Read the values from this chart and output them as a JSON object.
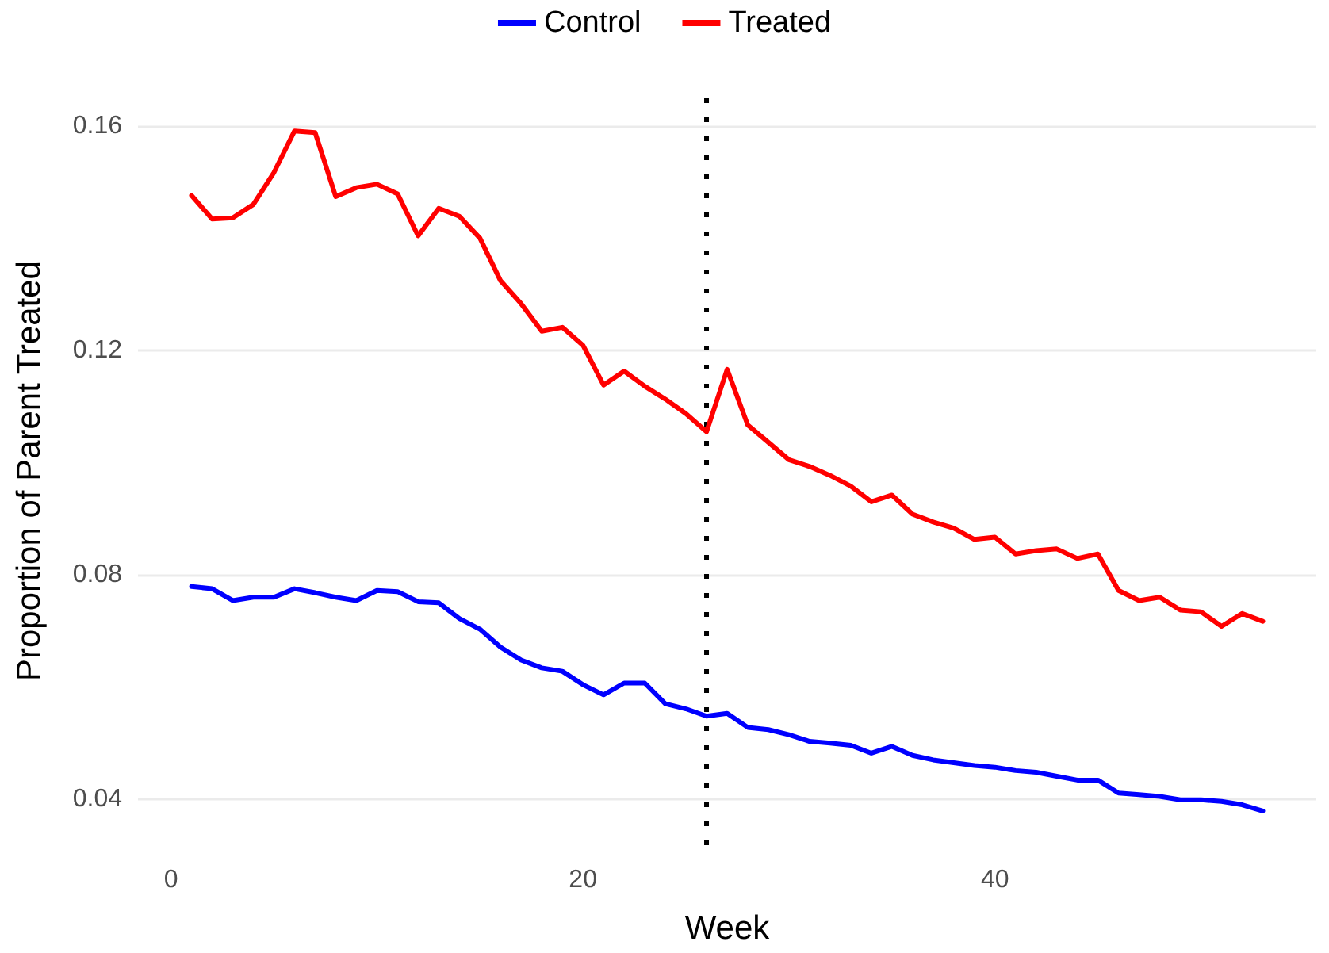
{
  "chart_data": {
    "type": "line",
    "xlabel": "Week",
    "ylabel": "Proportion of Parent Treated",
    "x": [
      1,
      2,
      3,
      4,
      5,
      6,
      7,
      8,
      9,
      10,
      11,
      12,
      13,
      14,
      15,
      16,
      17,
      18,
      19,
      20,
      21,
      22,
      23,
      24,
      25,
      26,
      27,
      28,
      29,
      30,
      31,
      32,
      33,
      34,
      35,
      36,
      37,
      38,
      39,
      40,
      41,
      42,
      43,
      44,
      45,
      46,
      47,
      48,
      49,
      50,
      51,
      52,
      53
    ],
    "series": [
      {
        "name": "Control",
        "color": "#0000ff",
        "values": [
          0.0779,
          0.0775,
          0.0754,
          0.076,
          0.076,
          0.0775,
          0.0768,
          0.076,
          0.0754,
          0.0772,
          0.077,
          0.0752,
          0.075,
          0.0722,
          0.0703,
          0.0671,
          0.0648,
          0.0634,
          0.0628,
          0.0604,
          0.0586,
          0.0607,
          0.0607,
          0.057,
          0.0561,
          0.0548,
          0.0553,
          0.0528,
          0.0524,
          0.0515,
          0.0503,
          0.05,
          0.0496,
          0.0482,
          0.0494,
          0.0478,
          0.047,
          0.0465,
          0.046,
          0.0457,
          0.0451,
          0.0448,
          0.0441,
          0.0434,
          0.0434,
          0.0411,
          0.0408,
          0.0405,
          0.0399,
          0.0399,
          0.0396,
          0.039,
          0.0379
        ]
      },
      {
        "name": "Treated",
        "color": "#ff0000",
        "values": [
          0.1476,
          0.1434,
          0.1436,
          0.146,
          0.1517,
          0.1591,
          0.1588,
          0.1474,
          0.149,
          0.1496,
          0.1479,
          0.1404,
          0.1453,
          0.1439,
          0.14,
          0.1324,
          0.1283,
          0.1234,
          0.1241,
          0.1209,
          0.1138,
          0.1163,
          0.1136,
          0.1113,
          0.1087,
          0.1055,
          0.1166,
          0.1067,
          0.1036,
          0.1005,
          0.0993,
          0.0977,
          0.0958,
          0.093,
          0.0942,
          0.0908,
          0.0894,
          0.0883,
          0.0863,
          0.0867,
          0.0837,
          0.0843,
          0.0846,
          0.0829,
          0.0837,
          0.0772,
          0.0754,
          0.076,
          0.0737,
          0.0734,
          0.0708,
          0.0731,
          0.0717
        ]
      }
    ],
    "xlim": [
      -1.6,
      55.6
    ],
    "xticks": [
      0,
      20,
      40
    ],
    "ylim": [
      0.0318,
      0.1652
    ],
    "yticks": [
      0.04,
      0.08,
      0.12,
      0.16
    ],
    "ref_lines": [
      {
        "axis": "x",
        "value": 26,
        "color": "#000000",
        "line_style": "dotted"
      }
    ],
    "grid": "y",
    "legend": "top",
    "marker": "none",
    "line_style": "solid"
  }
}
